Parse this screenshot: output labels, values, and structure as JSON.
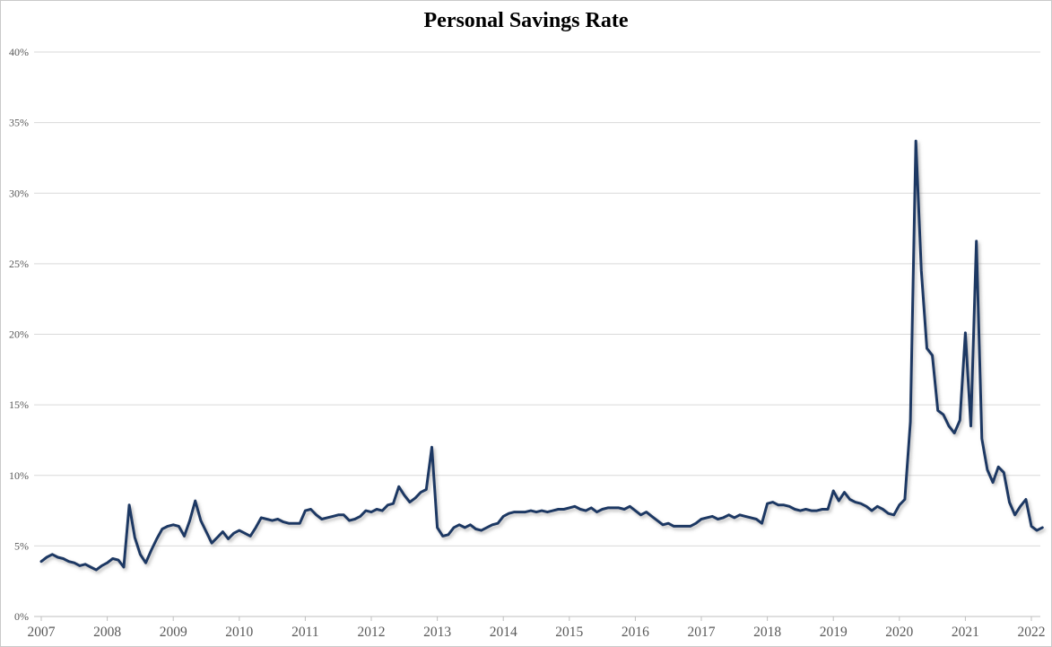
{
  "chart_data": {
    "type": "line",
    "title": "Personal Savings Rate",
    "unit": "%",
    "frequency": "monthly",
    "start": "2007-01",
    "end": "2022-03",
    "ylim": [
      0,
      40
    ],
    "y_tick_step": 5,
    "y_tick_labels": [
      "0%",
      "5%",
      "10%",
      "15%",
      "20%",
      "25%",
      "30%",
      "35%",
      "40%"
    ],
    "x_tick_labels": [
      "2007",
      "2008",
      "2009",
      "2010",
      "2011",
      "2012",
      "2013",
      "2014",
      "2015",
      "2016",
      "2017",
      "2018",
      "2019",
      "2020",
      "2021",
      "2022"
    ],
    "grid": "horizontal",
    "legend": "none",
    "colors": {
      "line": "#1f3864",
      "grid": "#d9d9d9",
      "axis": "#bfbfbf",
      "tick_text": "#595959",
      "title": "#000000",
      "frame": "#c9c9c9",
      "background": "#ffffff"
    },
    "series": [
      {
        "name": "Personal Savings Rate",
        "values": [
          3.9,
          4.2,
          4.4,
          4.2,
          4.1,
          3.9,
          3.8,
          3.6,
          3.7,
          3.5,
          3.3,
          3.6,
          3.8,
          4.1,
          4.0,
          3.5,
          7.9,
          5.6,
          4.4,
          3.8,
          4.7,
          5.5,
          6.2,
          6.4,
          6.5,
          6.4,
          5.7,
          6.8,
          8.2,
          6.8,
          6.0,
          5.2,
          5.6,
          6.0,
          5.5,
          5.9,
          6.1,
          5.9,
          5.7,
          6.3,
          7.0,
          6.9,
          6.8,
          6.9,
          6.7,
          6.6,
          6.6,
          6.6,
          7.5,
          7.6,
          7.2,
          6.9,
          7.0,
          7.1,
          7.2,
          7.2,
          6.8,
          6.9,
          7.1,
          7.5,
          7.4,
          7.6,
          7.5,
          7.9,
          8.0,
          9.2,
          8.6,
          8.1,
          8.4,
          8.8,
          9.0,
          12.0,
          6.3,
          5.7,
          5.8,
          6.3,
          6.5,
          6.3,
          6.5,
          6.2,
          6.1,
          6.3,
          6.5,
          6.6,
          7.1,
          7.3,
          7.4,
          7.4,
          7.4,
          7.5,
          7.4,
          7.5,
          7.4,
          7.5,
          7.6,
          7.6,
          7.7,
          7.8,
          7.6,
          7.5,
          7.7,
          7.4,
          7.6,
          7.7,
          7.7,
          7.7,
          7.6,
          7.8,
          7.5,
          7.2,
          7.4,
          7.1,
          6.8,
          6.5,
          6.6,
          6.4,
          6.4,
          6.4,
          6.4,
          6.6,
          6.9,
          7.0,
          7.1,
          6.9,
          7.0,
          7.2,
          7.0,
          7.2,
          7.1,
          7.0,
          6.9,
          6.6,
          8.0,
          8.1,
          7.9,
          7.9,
          7.8,
          7.6,
          7.5,
          7.6,
          7.5,
          7.5,
          7.6,
          7.6,
          8.9,
          8.2,
          8.8,
          8.3,
          8.1,
          8.0,
          7.8,
          7.5,
          7.8,
          7.6,
          7.3,
          7.2,
          7.9,
          8.3,
          13.8,
          33.7,
          24.5,
          19.0,
          18.5,
          14.6,
          14.3,
          13.5,
          13.0,
          13.9,
          20.1,
          13.5,
          26.6,
          12.6,
          10.4,
          9.5,
          10.6,
          10.2,
          8.1,
          7.2,
          7.8,
          8.3,
          6.4,
          6.1,
          6.3
        ]
      }
    ]
  }
}
